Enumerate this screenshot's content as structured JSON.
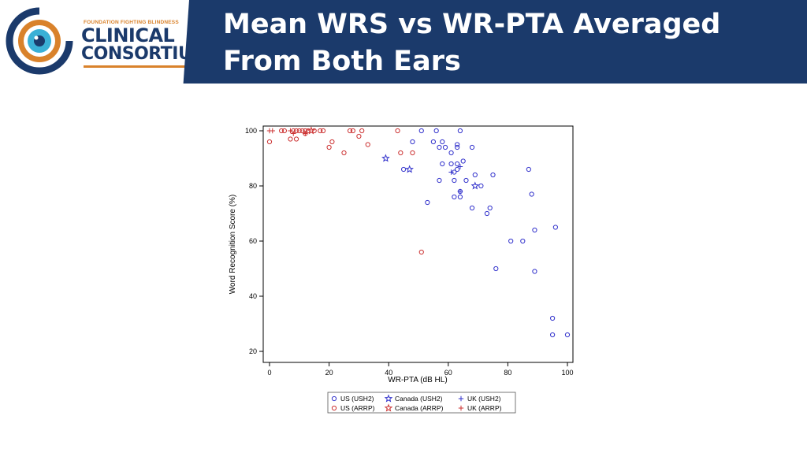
{
  "slide": {
    "title_line1": "Mean WRS vs WR-PTA Averaged",
    "title_line2": "From Both Ears",
    "header_color": "#1b3a6b"
  },
  "logo": {
    "tagline": "FOUNDATION FIGHTING BLINDNESS",
    "word1": "CLINICAL",
    "word2": "CONSORTIUM",
    "icon": "eye-icon",
    "navy": "#1b3a6b",
    "orange": "#d9822b",
    "teal": "#3ab0d6"
  },
  "chart_data": {
    "type": "scatter",
    "title": "",
    "xlabel": "WR-PTA (dB HL)",
    "ylabel": "Word Recognition Score (%)",
    "xlim": [
      0,
      100
    ],
    "ylim": [
      20,
      100
    ],
    "xticks": [
      0,
      20,
      40,
      60,
      80,
      100
    ],
    "yticks": [
      20,
      40,
      60,
      80,
      100
    ],
    "grid": false,
    "legend_position": "bottom",
    "series": [
      {
        "name": "US (USH2)",
        "color": "#3333cc",
        "marker": "circle",
        "points": [
          [
            51,
            100
          ],
          [
            56,
            100
          ],
          [
            64,
            100
          ],
          [
            55,
            96
          ],
          [
            58,
            96
          ],
          [
            48,
            96
          ],
          [
            57,
            94
          ],
          [
            59,
            94
          ],
          [
            63,
            95
          ],
          [
            63,
            94
          ],
          [
            68,
            94
          ],
          [
            61,
            92
          ],
          [
            65,
            89
          ],
          [
            58,
            88
          ],
          [
            61,
            88
          ],
          [
            63,
            88
          ],
          [
            63,
            86
          ],
          [
            45,
            86
          ],
          [
            62,
            85
          ],
          [
            69,
            84
          ],
          [
            75,
            84
          ],
          [
            87,
            86
          ],
          [
            62,
            82
          ],
          [
            57,
            82
          ],
          [
            66,
            82
          ],
          [
            71,
            80
          ],
          [
            64,
            78
          ],
          [
            88,
            77
          ],
          [
            62,
            76
          ],
          [
            64,
            76
          ],
          [
            53,
            74
          ],
          [
            68,
            72
          ],
          [
            74,
            72
          ],
          [
            73,
            70
          ],
          [
            96,
            65
          ],
          [
            89,
            64
          ],
          [
            81,
            60
          ],
          [
            85,
            60
          ],
          [
            76,
            50
          ],
          [
            89,
            49
          ],
          [
            95,
            32
          ],
          [
            95,
            26
          ],
          [
            100,
            26
          ]
        ]
      },
      {
        "name": "Canada (USH2)",
        "color": "#3333cc",
        "marker": "star",
        "points": [
          [
            39,
            90
          ],
          [
            47,
            86
          ],
          [
            69,
            80
          ]
        ]
      },
      {
        "name": "UK (USH2)",
        "color": "#3333cc",
        "marker": "plus",
        "points": [
          [
            64,
            87
          ],
          [
            61,
            85
          ],
          [
            64,
            78
          ]
        ]
      },
      {
        "name": "US (ARRP)",
        "color": "#cc3333",
        "marker": "circle",
        "points": [
          [
            4,
            100
          ],
          [
            5,
            100
          ],
          [
            8,
            100
          ],
          [
            9,
            100
          ],
          [
            10,
            100
          ],
          [
            11,
            100
          ],
          [
            12,
            100
          ],
          [
            13,
            100
          ],
          [
            15,
            100
          ],
          [
            17,
            100
          ],
          [
            18,
            100
          ],
          [
            27,
            100
          ],
          [
            28,
            100
          ],
          [
            31,
            100
          ],
          [
            43,
            100
          ],
          [
            12,
            99
          ],
          [
            30,
            98
          ],
          [
            7,
            97
          ],
          [
            9,
            97
          ],
          [
            0,
            96
          ],
          [
            21,
            96
          ],
          [
            20,
            94
          ],
          [
            33,
            95
          ],
          [
            25,
            92
          ],
          [
            44,
            92
          ],
          [
            48,
            92
          ],
          [
            51,
            56
          ]
        ]
      },
      {
        "name": "Canada (ARRP)",
        "color": "#cc3333",
        "marker": "star",
        "points": [
          [
            14,
            100
          ]
        ]
      },
      {
        "name": "UK (ARRP)",
        "color": "#cc3333",
        "marker": "plus",
        "points": [
          [
            0,
            100
          ],
          [
            1,
            100
          ],
          [
            7,
            100
          ],
          [
            8,
            99
          ],
          [
            12,
            99
          ]
        ]
      }
    ],
    "legend_order": [
      "US (USH2)",
      "Canada (USH2)",
      "UK (USH2)",
      "US (ARRP)",
      "Canada (ARRP)",
      "UK (ARRP)"
    ]
  }
}
